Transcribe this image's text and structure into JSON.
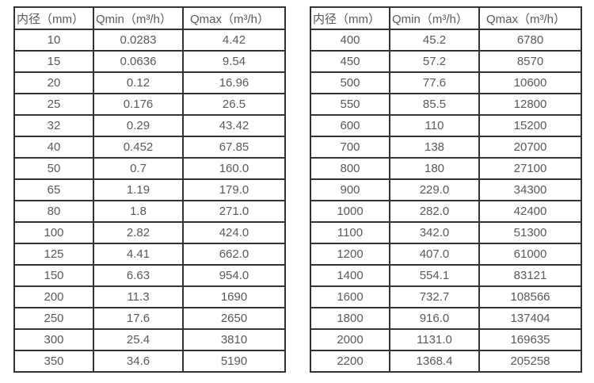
{
  "page": {
    "background_color": "#ffffff",
    "border_color": "#333333",
    "text_color": "#595959"
  },
  "tables": {
    "left": {
      "headers": [
        "内径（mm）",
        "Qmin（m³/h）",
        "Qmax（m³/h）"
      ],
      "rows": [
        [
          "10",
          "0.0283",
          "4.42"
        ],
        [
          "15",
          "0.0636",
          "9.54"
        ],
        [
          "20",
          "0.12",
          "16.96"
        ],
        [
          "25",
          "0.176",
          "26.5"
        ],
        [
          "32",
          "0.29",
          "43.42"
        ],
        [
          "40",
          "0.452",
          "67.85"
        ],
        [
          "50",
          "0.7",
          "160.0"
        ],
        [
          "65",
          "1.19",
          "179.0"
        ],
        [
          "80",
          "1.8",
          "271.0"
        ],
        [
          "100",
          "2.82",
          "424.0"
        ],
        [
          "125",
          "4.41",
          "662.0"
        ],
        [
          "150",
          "6.63",
          "954.0"
        ],
        [
          "200",
          "11.3",
          "1690"
        ],
        [
          "250",
          "17.6",
          "2650"
        ],
        [
          "300",
          "25.4",
          "3810"
        ],
        [
          "350",
          "34.6",
          "5190"
        ]
      ]
    },
    "right": {
      "headers": [
        "内径（mm）",
        "Qmin（m³/h）",
        "Qmax（m³/h）"
      ],
      "rows": [
        [
          "400",
          "45.2",
          "6780"
        ],
        [
          "450",
          "57.2",
          "8570"
        ],
        [
          "500",
          "77.6",
          "10600"
        ],
        [
          "550",
          "85.5",
          "12800"
        ],
        [
          "600",
          "110",
          "15200"
        ],
        [
          "700",
          "138",
          "20700"
        ],
        [
          "800",
          "180",
          "27100"
        ],
        [
          "900",
          "229.0",
          "34300"
        ],
        [
          "1000",
          "282.0",
          "42400"
        ],
        [
          "1100",
          "342.0",
          "51300"
        ],
        [
          "1200",
          "407.0",
          "61000"
        ],
        [
          "1400",
          "554.1",
          "83121"
        ],
        [
          "1600",
          "732.7",
          "108566"
        ],
        [
          "1800",
          "916.0",
          "137404"
        ],
        [
          "2000",
          "1131.0",
          "169635"
        ],
        [
          "2200",
          "1368.4",
          "205258"
        ]
      ]
    }
  }
}
